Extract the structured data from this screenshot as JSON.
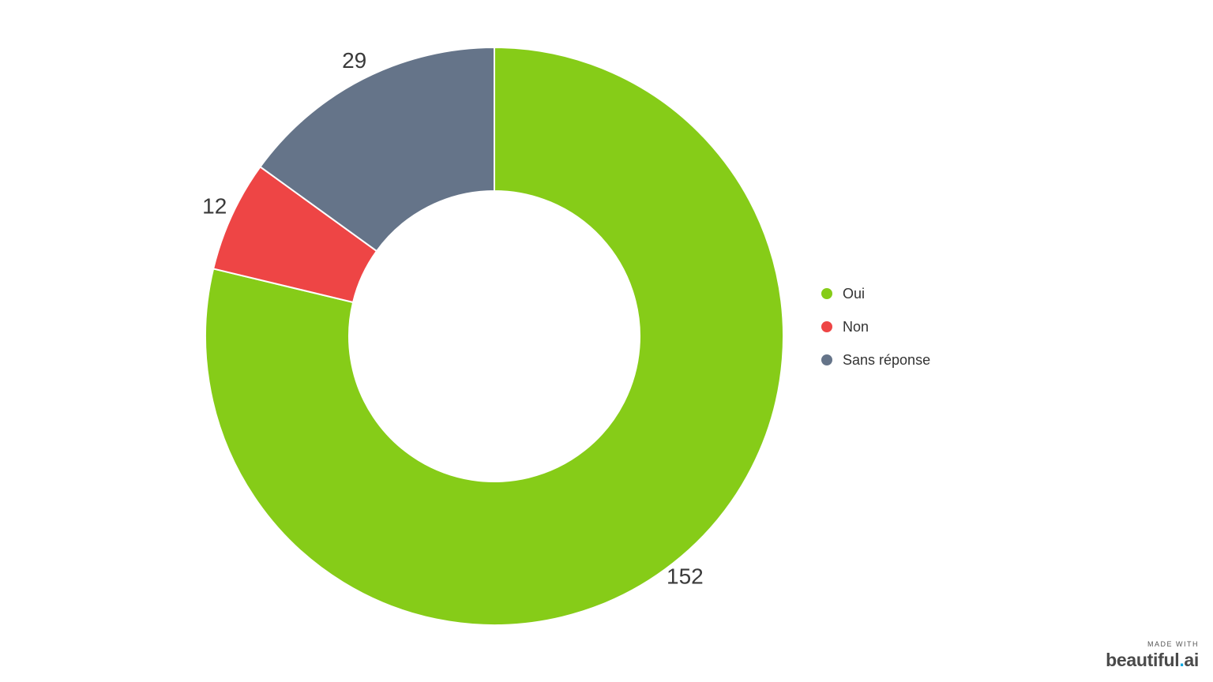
{
  "chart_data": {
    "type": "pie",
    "variant": "donut",
    "categories": [
      "Oui",
      "Non",
      "Sans réponse"
    ],
    "values": [
      152,
      12,
      29
    ],
    "colors": [
      "#86cc18",
      "#ee4545",
      "#657489"
    ],
    "legend": "right",
    "title": ""
  },
  "legend": {
    "items": [
      {
        "label": "Oui",
        "color": "#86cc18"
      },
      {
        "label": "Non",
        "color": "#ee4545"
      },
      {
        "label": "Sans réponse",
        "color": "#657489"
      }
    ]
  },
  "watermark": {
    "made_with": "MADE WITH",
    "brand_main": "beautiful",
    "brand_dot": ".",
    "brand_tld": "ai"
  }
}
